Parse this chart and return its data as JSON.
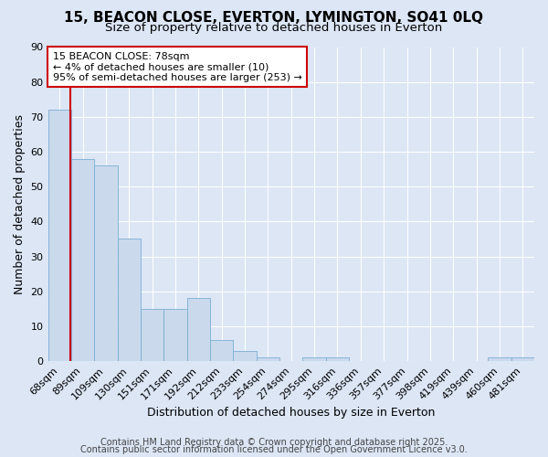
{
  "title1": "15, BEACON CLOSE, EVERTON, LYMINGTON, SO41 0LQ",
  "title2": "Size of property relative to detached houses in Everton",
  "xlabel": "Distribution of detached houses by size in Everton",
  "ylabel": "Number of detached properties",
  "categories": [
    "68sqm",
    "89sqm",
    "109sqm",
    "130sqm",
    "151sqm",
    "171sqm",
    "192sqm",
    "212sqm",
    "233sqm",
    "254sqm",
    "274sqm",
    "295sqm",
    "316sqm",
    "336sqm",
    "357sqm",
    "377sqm",
    "398sqm",
    "419sqm",
    "439sqm",
    "460sqm",
    "481sqm"
  ],
  "values": [
    72,
    58,
    56,
    35,
    15,
    15,
    18,
    6,
    3,
    1,
    0,
    1,
    1,
    0,
    0,
    0,
    0,
    0,
    0,
    1,
    1
  ],
  "bar_color": "#cad9ec",
  "bar_edge_color": "#7bafd4",
  "bar_width": 1.0,
  "ylim": [
    0,
    90
  ],
  "yticks": [
    0,
    10,
    20,
    30,
    40,
    50,
    60,
    70,
    80,
    90
  ],
  "vline_x": 0.47,
  "vline_color": "#cc0000",
  "annotation_line1": "15 BEACON CLOSE: 78sqm",
  "annotation_line2": "← 4% of detached houses are smaller (10)",
  "annotation_line3": "95% of semi-detached houses are larger (253) →",
  "annotation_box_color": "#ffffff",
  "annotation_box_edge": "#cc0000",
  "footer1": "Contains HM Land Registry data © Crown copyright and database right 2025.",
  "footer2": "Contains public sector information licensed under the Open Government Licence v3.0.",
  "bg_color": "#dce6f5",
  "plot_bg_color": "#dce6f5",
  "title1_fontsize": 11,
  "title2_fontsize": 9.5,
  "xlabel_fontsize": 9,
  "ylabel_fontsize": 9,
  "tick_fontsize": 8,
  "annotation_fontsize": 8,
  "footer_fontsize": 7
}
